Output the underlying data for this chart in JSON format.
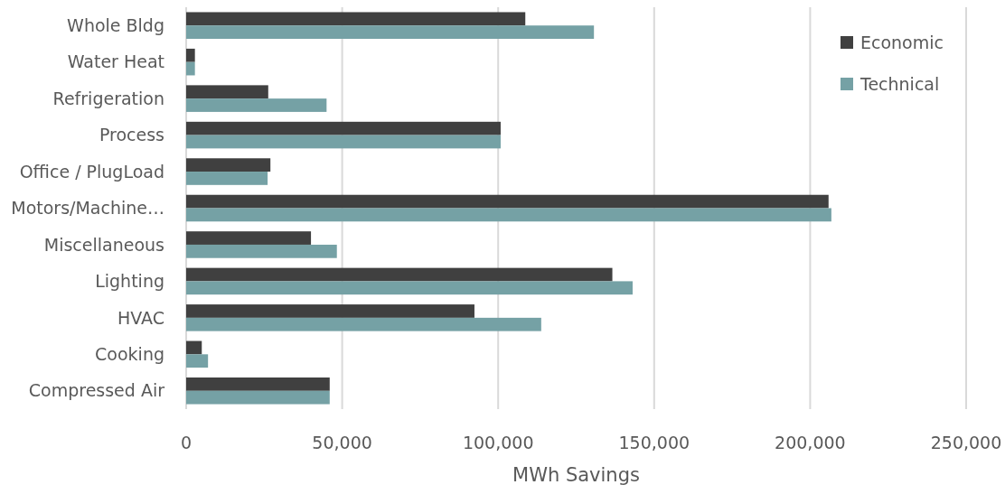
{
  "chart_data": {
    "type": "bar",
    "orientation": "horizontal",
    "xlabel": "MWh Savings",
    "categories": [
      "Whole Bldg",
      "Water Heat",
      "Refrigeration",
      "Process",
      "Office / PlugLoad",
      "Motors/Machine…",
      "Miscellaneous",
      "Lighting",
      "HVAC",
      "Cooking",
      "Compressed Air"
    ],
    "series": [
      {
        "name": "Economic",
        "color": "#404040",
        "values": [
          108700,
          2800,
          26300,
          100800,
          27000,
          205900,
          40000,
          136600,
          92400,
          5000,
          46000
        ]
      },
      {
        "name": "Technical",
        "color": "#75a1a5",
        "values": [
          130700,
          2800,
          45000,
          100800,
          26100,
          206800,
          48300,
          143100,
          113800,
          7000,
          46000
        ]
      }
    ],
    "xlim": [
      0,
      250000
    ],
    "xticks": [
      {
        "value": 0,
        "label": "0"
      },
      {
        "value": 50000,
        "label": "50,000"
      },
      {
        "value": 100000,
        "label": "100,000"
      },
      {
        "value": 150000,
        "label": "150,000"
      },
      {
        "value": 200000,
        "label": "200,000"
      },
      {
        "value": 250000,
        "label": "250,000"
      }
    ],
    "grid": "x",
    "legend": "top right"
  }
}
